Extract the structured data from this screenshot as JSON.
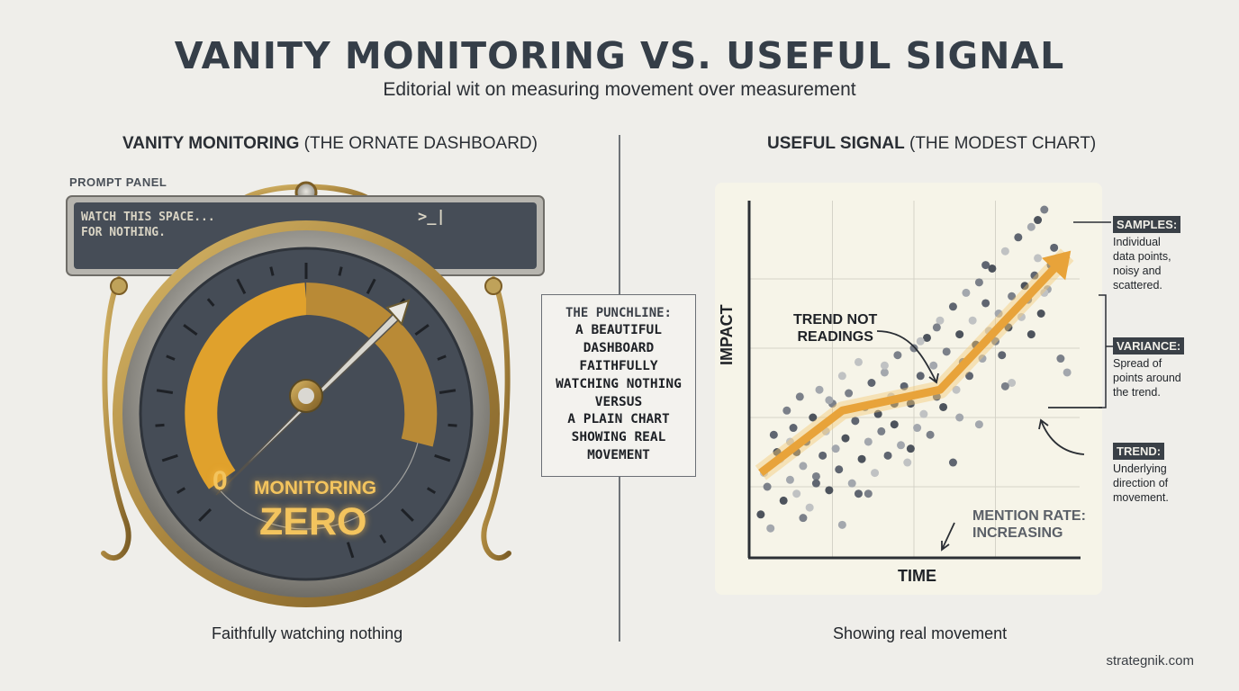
{
  "header": {
    "title": "VANITY MONITORING VS. USEFUL SIGNAL",
    "subtitle": "Editorial wit on measuring movement over measurement"
  },
  "left": {
    "heading_bold": "VANITY MONITORING",
    "heading_rest": "(THE ORNATE DASHBOARD)",
    "prompt_panel": {
      "label": "PROMPT PANEL",
      "line1": "WATCH THIS SPACE...",
      "line2": "FOR NOTHING.",
      "cursor": ">_|"
    },
    "gauge": {
      "zero_mark": "0",
      "label": "MONITORING",
      "value": "ZERO",
      "colors": {
        "arc": "#e0a12c",
        "arc_dim": "#c08a2e",
        "face": "#454c56",
        "rim": "#b9b7b0"
      }
    },
    "caption": "Faithfully watching nothing"
  },
  "punchline": {
    "heading": "THE PUNCHLINE:",
    "lines": [
      "A BEAUTIFUL",
      "DASHBOARD",
      "FAITHFULLY",
      "WATCHING NOTHING",
      "VERSUS",
      "A PLAIN CHART",
      "SHOWING REAL",
      "MOVEMENT"
    ]
  },
  "right": {
    "heading_bold": "USEFUL SIGNAL",
    "heading_rest": "(THE MODEST CHART)",
    "caption": "Showing real movement",
    "annotations": {
      "samples": {
        "tag": "SAMPLES:",
        "desc": [
          "Individual",
          "data points,",
          "noisy and",
          "scattered."
        ]
      },
      "variance": {
        "tag": "VARIANCE:",
        "desc": [
          "Spread of",
          "points around",
          "the trend."
        ]
      },
      "trend": {
        "tag": "TREND:",
        "desc": [
          "Underlying",
          "direction of",
          "movement."
        ]
      }
    }
  },
  "chart_data": {
    "type": "scatter",
    "xlabel": "TIME",
    "ylabel": "IMPACT",
    "xlim": [
      0,
      100
    ],
    "ylim": [
      0,
      100
    ],
    "grid": true,
    "callouts": {
      "trend": [
        "TREND NOT",
        "READINGS"
      ],
      "rate": [
        "MENTION RATE:",
        "INCREASING"
      ]
    },
    "trend_line": {
      "x": [
        3,
        28,
        58,
        97
      ],
      "y": [
        24,
        42,
        48,
        87
      ],
      "color": "#e8a33a"
    },
    "points": {
      "x": [
        3,
        5,
        6,
        7,
        9,
        10,
        11,
        12,
        13,
        14,
        14,
        15,
        16,
        17,
        18,
        19,
        20,
        21,
        22,
        23,
        24,
        25,
        26,
        27,
        28,
        29,
        30,
        31,
        32,
        33,
        34,
        35,
        36,
        37,
        38,
        39,
        40,
        41,
        42,
        43,
        44,
        45,
        46,
        47,
        48,
        49,
        50,
        51,
        52,
        53,
        54,
        55,
        56,
        57,
        58,
        59,
        60,
        61,
        62,
        63,
        64,
        65,
        66,
        67,
        68,
        69,
        70,
        71,
        72,
        73,
        74,
        75,
        76,
        77,
        78,
        79,
        80,
        81,
        82,
        83,
        84,
        85,
        86,
        87,
        88,
        89,
        90,
        91,
        92,
        4,
        8,
        16,
        24,
        33,
        41,
        49,
        57,
        64,
        72,
        80,
        88,
        95,
        97,
        93,
        90,
        86,
        78,
        70,
        62,
        52,
        44,
        36,
        28,
        20,
        12
      ],
      "y": [
        12,
        20,
        8,
        35,
        28,
        16,
        42,
        22,
        37,
        18,
        30,
        46,
        26,
        33,
        14,
        40,
        23,
        48,
        29,
        36,
        19,
        44,
        31,
        25,
        52,
        34,
        47,
        21,
        39,
        56,
        28,
        43,
        33,
        50,
        24,
        41,
        36,
        53,
        29,
        46,
        38,
        58,
        32,
        49,
        27,
        44,
        60,
        37,
        52,
        41,
        63,
        35,
        55,
        46,
        68,
        43,
        59,
        51,
        72,
        48,
        64,
        56,
        76,
        52,
        68,
        61,
        79,
        57,
        73,
        65,
        83,
        62,
        70,
        58,
        88,
        66,
        75,
        71,
        92,
        69,
        78,
        74,
        95,
        81,
        86,
        70,
        100,
        77,
        84,
        24,
        30,
        11,
        45,
        18,
        55,
        31,
        66,
        40,
        84,
        50,
        97,
        57,
        53,
        89,
        76,
        64,
        49,
        38,
        27,
        62,
        44,
        18,
        9,
        21,
        33
      ],
      "color": "#6b7079"
    }
  }
}
